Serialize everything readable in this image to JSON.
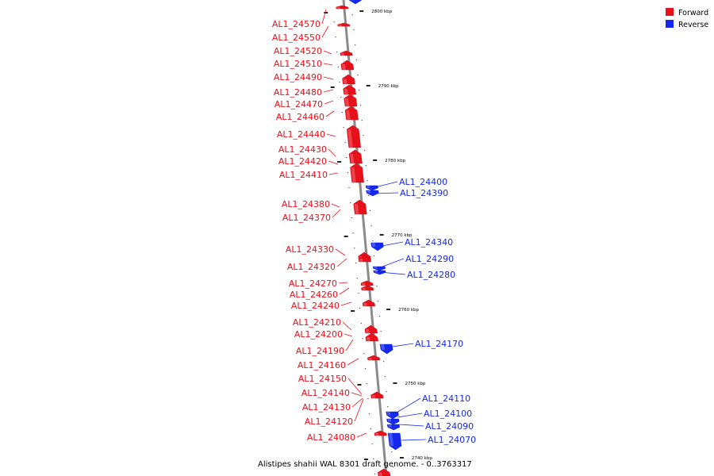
{
  "colors": {
    "forward": "#e8101b",
    "reverse": "#1428f0",
    "backbone": "#8a8a8a"
  },
  "legend": [
    {
      "label": "Forward",
      "color": "#e8101b"
    },
    {
      "label": "Reverse",
      "color": "#1428f0"
    }
  ],
  "caption": "Alistipes shahii WAL 8301 draft genome. - 0..3763317",
  "ticks": [
    "2800 kbp",
    "2790 kbp",
    "2780 kbp",
    "2770 kbp",
    "2760 kbp",
    "2750 kbp",
    "2740 kbp"
  ],
  "forward_genes": [
    "AL1_24570",
    "AL1_24550",
    "AL1_24520",
    "AL1_24510",
    "AL1_24490",
    "AL1_24480",
    "AL1_24470",
    "AL1_24460",
    "AL1_24440",
    "AL1_24430",
    "AL1_24420",
    "AL1_24410",
    "AL1_24380",
    "AL1_24370",
    "AL1_24330",
    "AL1_24320",
    "AL1_24270",
    "AL1_24260",
    "AL1_24240",
    "AL1_24210",
    "AL1_24200",
    "AL1_24190",
    "AL1_24160",
    "AL1_24150",
    "AL1_24140",
    "AL1_24130",
    "AL1_24120",
    "AL1_24080"
  ],
  "reverse_genes": [
    "AL1_24400",
    "AL1_24390",
    "AL1_24340",
    "AL1_24290",
    "AL1_24280",
    "AL1_24170",
    "AL1_24110",
    "AL1_24100",
    "AL1_24090",
    "AL1_24070"
  ]
}
